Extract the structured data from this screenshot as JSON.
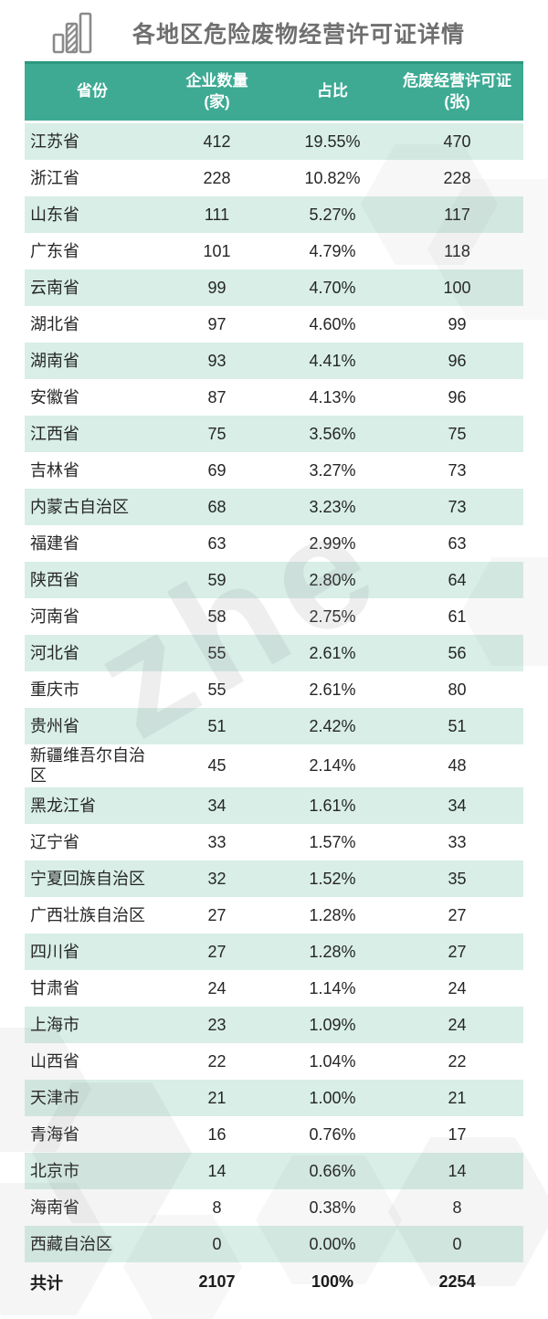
{
  "header": {
    "title": "各地区危险废物经营许可证详情",
    "icon": "bar-chart-icon"
  },
  "watermark": {
    "text": "zhe"
  },
  "colors": {
    "header_bg": "#3eaa94",
    "header_top_line": "#2e9780",
    "row_alt_bg": "#d8eee7",
    "header_text": "#ffffff",
    "body_text": "#262626",
    "title_text": "#6f6f6f",
    "icon_gray": "#8a8a8a"
  },
  "chart_data": {
    "type": "table",
    "title": "各地区危险废物经营许可证详情",
    "columns": [
      {
        "label": "省份",
        "sub": ""
      },
      {
        "label": "企业数量",
        "sub": "(家)"
      },
      {
        "label": "占比",
        "sub": ""
      },
      {
        "label": "危废经营许可证",
        "sub": "(张)"
      }
    ],
    "rows": [
      {
        "province": "江苏省",
        "companies": "412",
        "share": "19.55%",
        "permits": "470"
      },
      {
        "province": "浙江省",
        "companies": "228",
        "share": "10.82%",
        "permits": "228"
      },
      {
        "province": "山东省",
        "companies": "111",
        "share": "5.27%",
        "permits": "117"
      },
      {
        "province": "广东省",
        "companies": "101",
        "share": "4.79%",
        "permits": "118"
      },
      {
        "province": "云南省",
        "companies": "99",
        "share": "4.70%",
        "permits": "100"
      },
      {
        "province": "湖北省",
        "companies": "97",
        "share": "4.60%",
        "permits": "99"
      },
      {
        "province": "湖南省",
        "companies": "93",
        "share": "4.41%",
        "permits": "96"
      },
      {
        "province": "安徽省",
        "companies": "87",
        "share": "4.13%",
        "permits": "96"
      },
      {
        "province": "江西省",
        "companies": "75",
        "share": "3.56%",
        "permits": "75"
      },
      {
        "province": "吉林省",
        "companies": "69",
        "share": "3.27%",
        "permits": "73"
      },
      {
        "province": "内蒙古自治区",
        "companies": "68",
        "share": "3.23%",
        "permits": "73"
      },
      {
        "province": "福建省",
        "companies": "63",
        "share": "2.99%",
        "permits": "63"
      },
      {
        "province": "陕西省",
        "companies": "59",
        "share": "2.80%",
        "permits": "64"
      },
      {
        "province": "河南省",
        "companies": "58",
        "share": "2.75%",
        "permits": "61"
      },
      {
        "province": "河北省",
        "companies": "55",
        "share": "2.61%",
        "permits": "56"
      },
      {
        "province": "重庆市",
        "companies": "55",
        "share": "2.61%",
        "permits": "80"
      },
      {
        "province": "贵州省",
        "companies": "51",
        "share": "2.42%",
        "permits": "51"
      },
      {
        "province": "新疆维吾尔自治区",
        "companies": "45",
        "share": "2.14%",
        "permits": "48"
      },
      {
        "province": "黑龙江省",
        "companies": "34",
        "share": "1.61%",
        "permits": "34"
      },
      {
        "province": "辽宁省",
        "companies": "33",
        "share": "1.57%",
        "permits": "33"
      },
      {
        "province": "宁夏回族自治区",
        "companies": "32",
        "share": "1.52%",
        "permits": "35"
      },
      {
        "province": "广西壮族自治区",
        "companies": "27",
        "share": "1.28%",
        "permits": "27"
      },
      {
        "province": "四川省",
        "companies": "27",
        "share": "1.28%",
        "permits": "27"
      },
      {
        "province": "甘肃省",
        "companies": "24",
        "share": "1.14%",
        "permits": "24"
      },
      {
        "province": "上海市",
        "companies": "23",
        "share": "1.09%",
        "permits": "24"
      },
      {
        "province": "山西省",
        "companies": "22",
        "share": "1.04%",
        "permits": "22"
      },
      {
        "province": "天津市",
        "companies": "21",
        "share": "1.00%",
        "permits": "21"
      },
      {
        "province": "青海省",
        "companies": "16",
        "share": "0.76%",
        "permits": "17"
      },
      {
        "province": "北京市",
        "companies": "14",
        "share": "0.66%",
        "permits": "14"
      },
      {
        "province": "海南省",
        "companies": "8",
        "share": "0.38%",
        "permits": "8"
      },
      {
        "province": "西藏自治区",
        "companies": "0",
        "share": "0.00%",
        "permits": "0"
      }
    ],
    "total": {
      "label": "共计",
      "companies": "2107",
      "share": "100%",
      "permits": "2254"
    }
  }
}
